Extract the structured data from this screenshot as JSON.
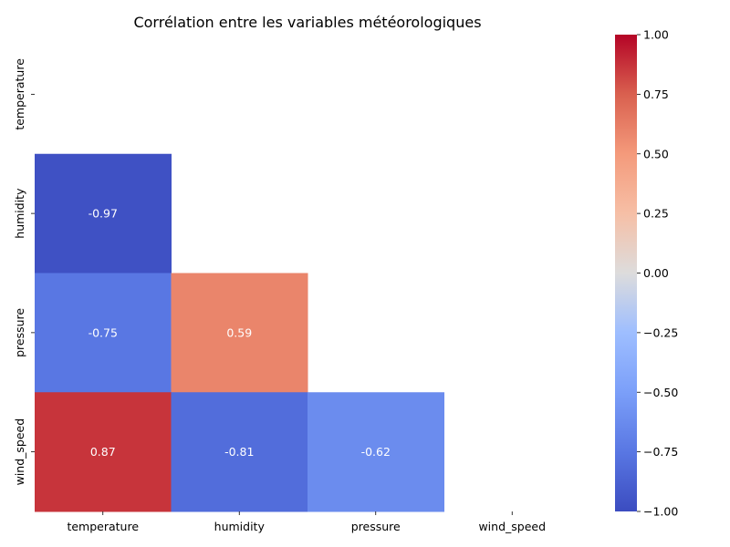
{
  "chart_data": {
    "type": "heatmap",
    "title": "Corrélation entre les variables météorologiques",
    "x_labels": [
      "temperature",
      "humidity",
      "pressure",
      "wind_speed"
    ],
    "y_labels": [
      "temperature",
      "humidity",
      "pressure",
      "wind_speed"
    ],
    "mask": "upper-triangle-including-diagonal",
    "cells": [
      {
        "row": 1,
        "col": 0,
        "value": -0.97,
        "label": "-0.97"
      },
      {
        "row": 2,
        "col": 0,
        "value": -0.75,
        "label": "-0.75"
      },
      {
        "row": 2,
        "col": 1,
        "value": 0.59,
        "label": "0.59"
      },
      {
        "row": 3,
        "col": 0,
        "value": 0.87,
        "label": "0.87"
      },
      {
        "row": 3,
        "col": 1,
        "value": -0.81,
        "label": "-0.81"
      },
      {
        "row": 3,
        "col": 2,
        "value": -0.62,
        "label": "-0.62"
      }
    ],
    "colormap": "coolwarm",
    "vmin": -1.0,
    "vmax": 1.0,
    "colorbar_ticks": [
      {
        "value": 1.0,
        "label": "1.00"
      },
      {
        "value": 0.75,
        "label": "0.75"
      },
      {
        "value": 0.5,
        "label": "0.50"
      },
      {
        "value": 0.25,
        "label": "0.25"
      },
      {
        "value": 0.0,
        "label": "0.00"
      },
      {
        "value": -0.25,
        "label": "−0.25"
      },
      {
        "value": -0.5,
        "label": "−0.50"
      },
      {
        "value": -0.75,
        "label": "−0.75"
      },
      {
        "value": -1.0,
        "label": "−1.00"
      }
    ]
  }
}
